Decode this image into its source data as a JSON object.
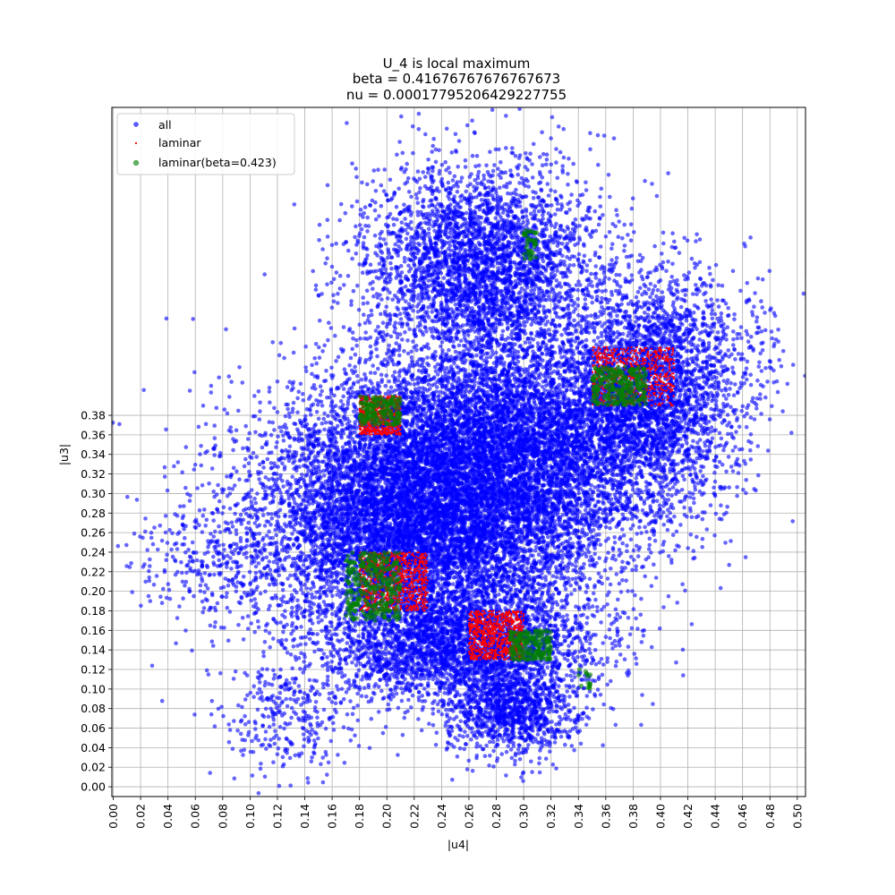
{
  "chart_data": {
    "type": "scatter",
    "title": [
      "U_4 is local maximum",
      "beta = 0.41676767676767673",
      "nu = 0.00017795206429227755"
    ],
    "xlabel": "|u4|",
    "ylabel": "|u3|",
    "xlim": [
      -0.001,
      0.506
    ],
    "ylim": [
      -0.01,
      0.695
    ],
    "x_ticks": [
      "0.00",
      "0.02",
      "0.04",
      "0.06",
      "0.08",
      "0.10",
      "0.12",
      "0.14",
      "0.16",
      "0.18",
      "0.20",
      "0.22",
      "0.24",
      "0.26",
      "0.28",
      "0.30",
      "0.32",
      "0.34",
      "0.36",
      "0.38",
      "0.40",
      "0.42",
      "0.44",
      "0.46",
      "0.48",
      "0.50"
    ],
    "y_ticks": [
      "0.00",
      "0.02",
      "0.04",
      "0.06",
      "0.08",
      "0.10",
      "0.12",
      "0.14",
      "0.16",
      "0.18",
      "0.20",
      "0.22",
      "0.24",
      "0.26",
      "0.28",
      "0.30",
      "0.32",
      "0.34",
      "0.36",
      "0.38"
    ],
    "grid": true,
    "legend_position": "top-left",
    "series": [
      {
        "name": "all",
        "color": "#0000ff",
        "marker": "circle",
        "clusters": [
          {
            "points": 9000,
            "x": [
              0.12,
              0.33
            ],
            "y": [
              0.16,
              0.38
            ]
          },
          {
            "points": 6500,
            "x": [
              0.18,
              0.4
            ],
            "y": [
              0.25,
              0.45
            ]
          },
          {
            "points": 3500,
            "x": [
              0.2,
              0.34
            ],
            "y": [
              0.45,
              0.62
            ]
          },
          {
            "points": 2500,
            "x": [
              0.34,
              0.44
            ],
            "y": [
              0.32,
              0.5
            ]
          },
          {
            "points": 2500,
            "x": [
              0.17,
              0.34
            ],
            "y": [
              0.1,
              0.19
            ]
          },
          {
            "points": 1200,
            "x": [
              0.25,
              0.33
            ],
            "y": [
              0.04,
              0.12
            ]
          },
          {
            "points": 250,
            "x": [
              0.02,
              0.12
            ],
            "y": [
              0.18,
              0.28
            ]
          },
          {
            "points": 300,
            "x": [
              0.08,
              0.18
            ],
            "y": [
              0.02,
              0.12
            ]
          },
          {
            "points": 250,
            "x": [
              0.4,
              0.49
            ],
            "y": [
              0.38,
              0.52
            ]
          }
        ]
      },
      {
        "name": "laminar",
        "color": "#ff0000",
        "marker": "dot",
        "clusters": [
          {
            "points": 700,
            "x": [
              0.18,
              0.21
            ],
            "y": [
              0.36,
              0.4
            ]
          },
          {
            "points": 900,
            "x": [
              0.18,
              0.23
            ],
            "y": [
              0.18,
              0.24
            ]
          },
          {
            "points": 900,
            "x": [
              0.26,
              0.3
            ],
            "y": [
              0.13,
              0.18
            ]
          },
          {
            "points": 700,
            "x": [
              0.35,
              0.41
            ],
            "y": [
              0.39,
              0.45
            ]
          }
        ]
      },
      {
        "name": "laminar(beta=0.423)",
        "color": "#008000",
        "marker": "circle",
        "clusters": [
          {
            "points": 150,
            "x": [
              0.18,
              0.21
            ],
            "y": [
              0.37,
              0.4
            ]
          },
          {
            "points": 300,
            "x": [
              0.17,
              0.21
            ],
            "y": [
              0.17,
              0.24
            ]
          },
          {
            "points": 180,
            "x": [
              0.29,
              0.32
            ],
            "y": [
              0.13,
              0.16
            ]
          },
          {
            "points": 250,
            "x": [
              0.35,
              0.39
            ],
            "y": [
              0.39,
              0.43
            ]
          },
          {
            "points": 40,
            "x": [
              0.3,
              0.31
            ],
            "y": [
              0.54,
              0.57
            ]
          },
          {
            "points": 15,
            "x": [
              0.34,
              0.35
            ],
            "y": [
              0.1,
              0.12
            ]
          }
        ]
      }
    ]
  }
}
